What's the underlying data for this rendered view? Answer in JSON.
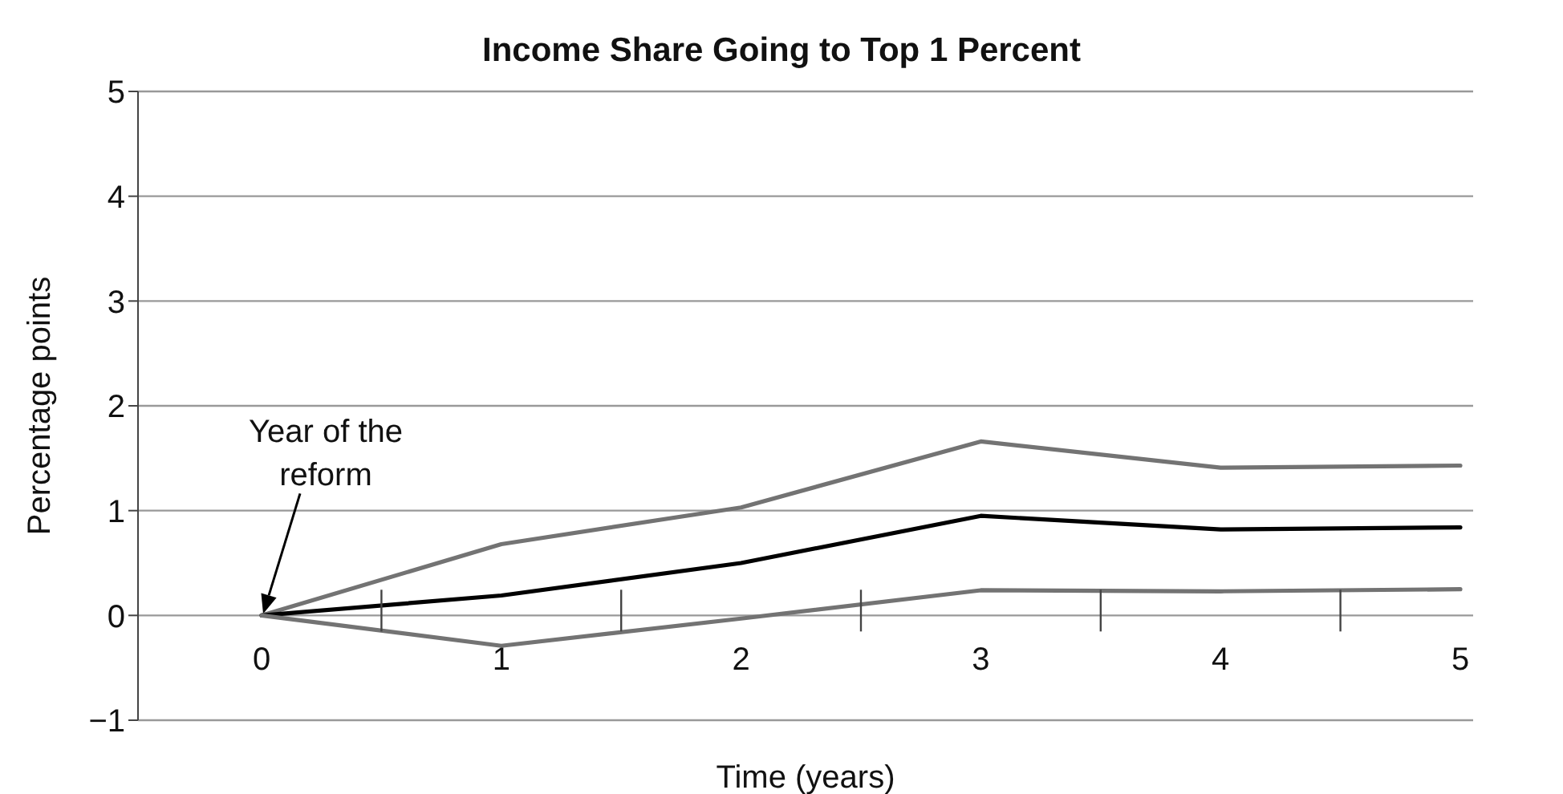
{
  "chart_data": {
    "type": "line",
    "title": "Income Share Going to Top 1 Percent",
    "xlabel": "Time (years)",
    "ylabel": "Percentage points",
    "categories": [
      "0",
      "1",
      "2",
      "3",
      "4",
      "5"
    ],
    "series": [
      {
        "color": "#737373",
        "values": [
          0,
          0.68,
          1.03,
          1.66,
          1.41,
          1.43
        ]
      },
      {
        "color": "#000000",
        "values": [
          0,
          0.19,
          0.5,
          0.95,
          0.82,
          0.84
        ]
      },
      {
        "color": "#737373",
        "values": [
          0,
          -0.29,
          -0.03,
          0.24,
          0.23,
          0.25
        ]
      }
    ],
    "ylim": [
      -1,
      5
    ],
    "yticks": [
      {
        "value": -1,
        "label": "−1"
      },
      0,
      1,
      2,
      3,
      4,
      5
    ],
    "grid": "y",
    "marker": "none",
    "line_style": "solid",
    "annotations": [
      "Year of the reform"
    ]
  }
}
